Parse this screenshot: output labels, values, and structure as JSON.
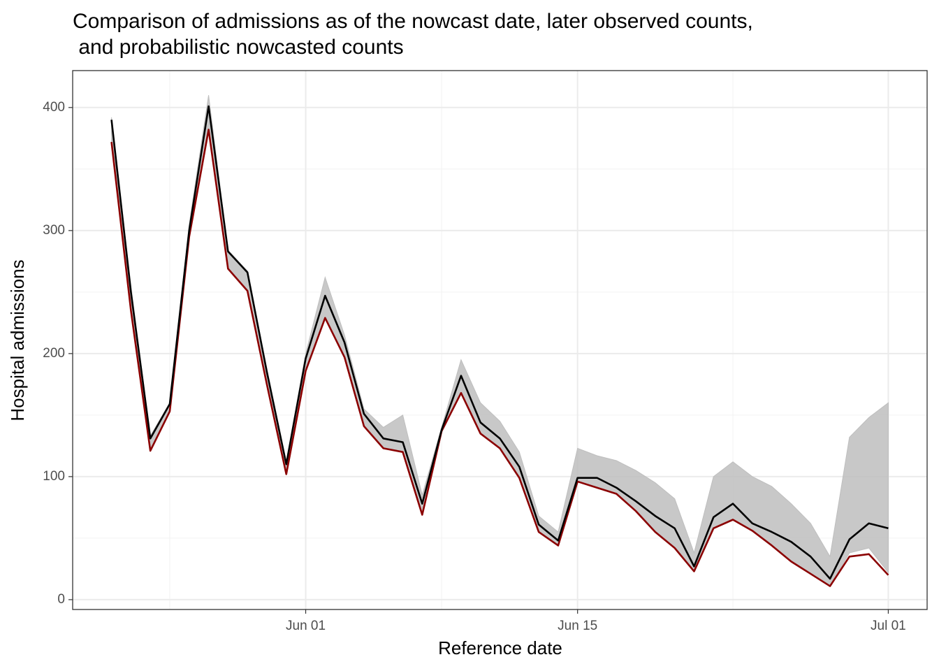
{
  "chart_data": {
    "type": "line",
    "title": "Comparison of admissions as of the nowcast date, later observed counts,\n and probabilistic nowcasted counts",
    "x_label": "Reference date",
    "y_label": "Hospital admissions",
    "x": [
      "May 22",
      "May 23",
      "May 24",
      "May 25",
      "May 26",
      "May 27",
      "May 28",
      "May 29",
      "May 30",
      "May 31",
      "Jun 01",
      "Jun 02",
      "Jun 03",
      "Jun 04",
      "Jun 05",
      "Jun 06",
      "Jun 07",
      "Jun 08",
      "Jun 09",
      "Jun 10",
      "Jun 11",
      "Jun 12",
      "Jun 13",
      "Jun 14",
      "Jun 15",
      "Jun 16",
      "Jun 17",
      "Jun 18",
      "Jun 19",
      "Jun 20",
      "Jun 21",
      "Jun 22",
      "Jun 23",
      "Jun 24",
      "Jun 25",
      "Jun 26",
      "Jun 27",
      "Jun 28",
      "Jun 29",
      "Jun 30",
      "Jul 01"
    ],
    "xlim": [
      "May 20",
      "Jul 03"
    ],
    "xticks": [
      "Jun 01",
      "Jun 15",
      "Jul 01"
    ],
    "ylim": [
      -8,
      430
    ],
    "yticks": [
      0,
      100,
      200,
      300,
      400
    ],
    "grid": true,
    "band": {
      "color": "#bebebe",
      "upper": [
        392,
        255,
        133,
        160,
        305,
        410,
        284,
        267,
        188,
        112,
        200,
        262,
        215,
        155,
        140,
        150,
        85,
        140,
        195,
        160,
        145,
        120,
        68,
        55,
        123,
        117,
        113,
        105,
        95,
        82,
        38,
        100,
        112,
        100,
        92,
        78,
        62,
        35,
        132,
        148,
        160
      ],
      "lower": [
        372,
        235,
        121,
        153,
        295,
        382,
        269,
        251,
        175,
        102,
        186,
        229,
        197,
        141,
        123,
        120,
        69,
        137,
        168,
        135,
        123,
        99,
        55,
        44,
        96,
        91,
        86,
        72,
        55,
        42,
        23,
        58,
        65,
        56,
        44,
        31,
        21,
        11,
        38,
        42,
        22
      ]
    },
    "series": [
      {
        "color": "#000000",
        "values": [
          390,
          250,
          131,
          159,
          300,
          401,
          283,
          266,
          185,
          110,
          196,
          247,
          209,
          151,
          131,
          128,
          78,
          138,
          182,
          144,
          131,
          108,
          61,
          48,
          99,
          99,
          91,
          80,
          68,
          58,
          27,
          67,
          78,
          62,
          55,
          47,
          35,
          17,
          49,
          62,
          58
        ]
      },
      {
        "color": "#8b0000",
        "values": [
          372,
          235,
          121,
          153,
          295,
          382,
          269,
          251,
          175,
          102,
          186,
          229,
          197,
          141,
          123,
          120,
          69,
          137,
          168,
          135,
          123,
          99,
          55,
          44,
          96,
          91,
          86,
          72,
          55,
          42,
          23,
          58,
          65,
          56,
          44,
          31,
          21,
          11,
          35,
          37,
          20
        ]
      }
    ]
  }
}
